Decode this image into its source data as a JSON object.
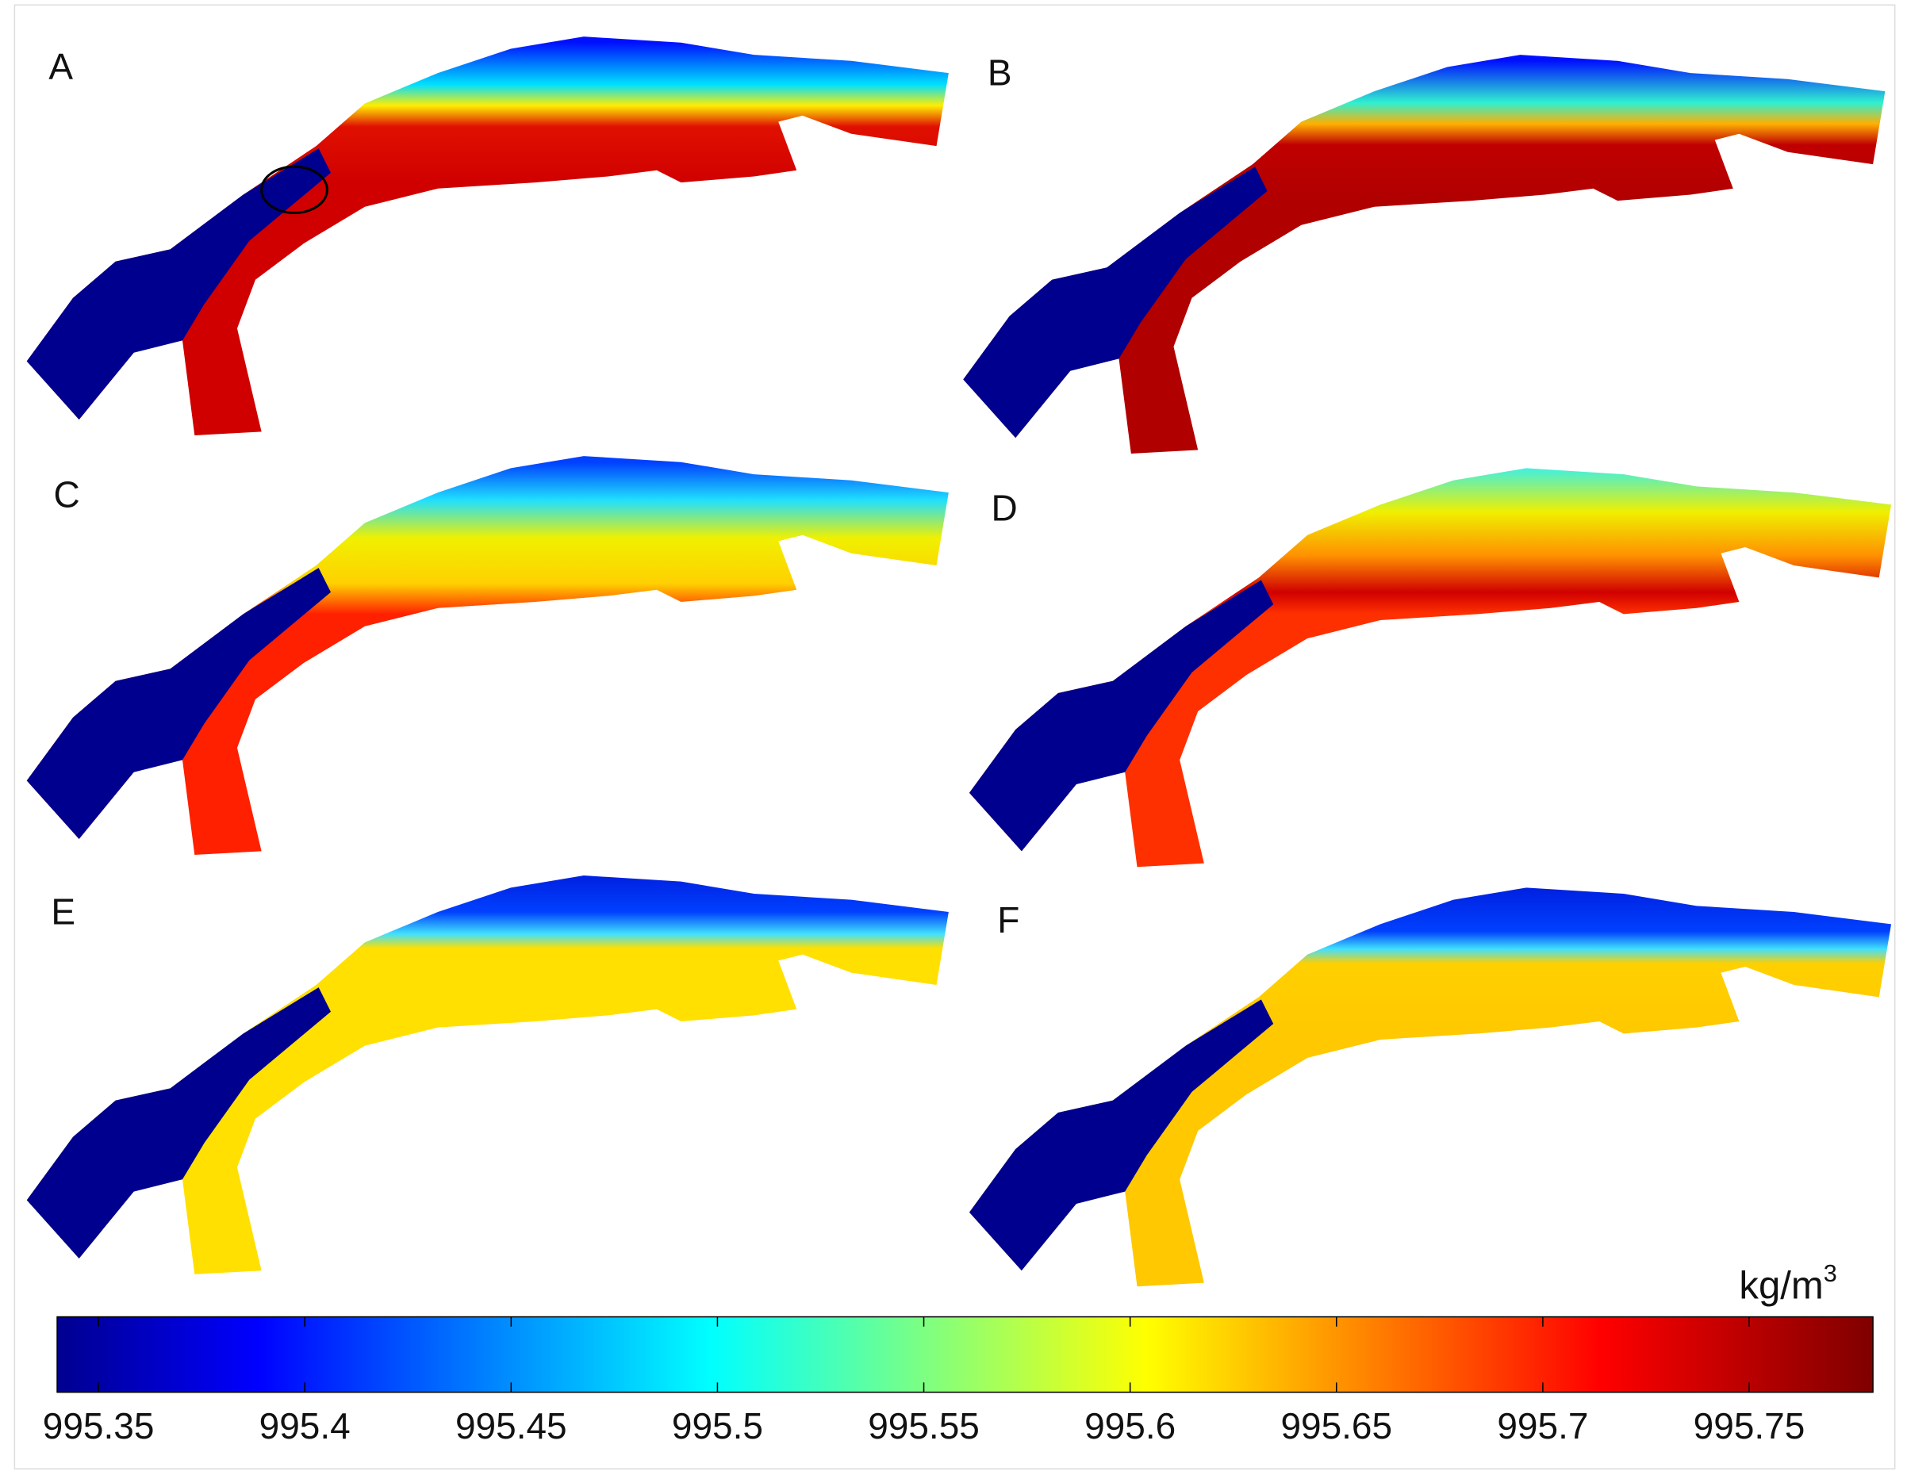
{
  "panels": [
    "A",
    "B",
    "C",
    "D",
    "E",
    "F"
  ],
  "colorbar": {
    "unit": "kg/m",
    "unit_superscript": "3",
    "lim": [
      995.34,
      995.78
    ],
    "ticks": [
      995.35,
      995.4,
      995.45,
      995.5,
      995.55,
      995.6,
      995.65,
      995.7,
      995.75
    ]
  }
}
